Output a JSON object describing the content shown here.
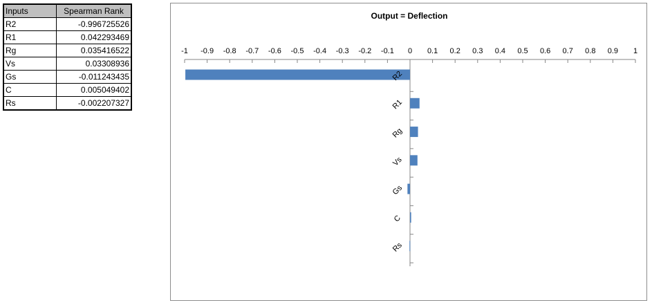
{
  "table": {
    "headers": [
      "Inputs",
      "Spearman Rank"
    ],
    "rows": [
      {
        "input": "R2",
        "value": "-0.996725526"
      },
      {
        "input": "R1",
        "value": "0.042293469"
      },
      {
        "input": "Rg",
        "value": "0.035416522"
      },
      {
        "input": "Vs",
        "value": "0.03308936"
      },
      {
        "input": "Gs",
        "value": "-0.011243435"
      },
      {
        "input": "C",
        "value": "0.005049402"
      },
      {
        "input": "Rs",
        "value": "-0.002207327"
      }
    ]
  },
  "chart_data": {
    "type": "bar",
    "orientation": "horizontal",
    "title": "Output = Deflection",
    "categories": [
      "R2",
      "R1",
      "Rg",
      "Vs",
      "Gs",
      "C",
      "Rs"
    ],
    "values": [
      -0.996725526,
      0.042293469,
      0.035416522,
      0.03308936,
      -0.011243435,
      0.005049402,
      -0.002207327
    ],
    "xlim": [
      -1,
      1
    ],
    "xticks": [
      "-1",
      "-0.9",
      "-0.8",
      "-0.7",
      "-0.6",
      "-0.5",
      "-0.4",
      "-0.3",
      "-0.2",
      "-0.1",
      "0",
      "0.1",
      "0.2",
      "0.3",
      "0.4",
      "0.5",
      "0.6",
      "0.7",
      "0.8",
      "0.9",
      "1"
    ],
    "axis_position": "top",
    "grid": false,
    "legend": false,
    "bar_color": "#4f81bd"
  }
}
